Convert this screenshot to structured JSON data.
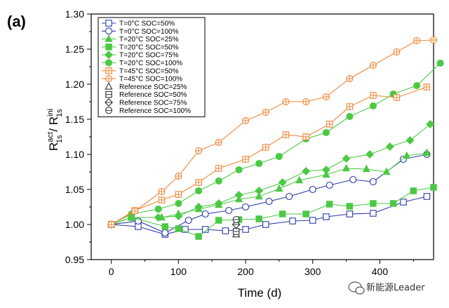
{
  "panel_label": "(a)",
  "watermark": {
    "text": "新能源Leader",
    "icon": "chat-bubble-icon"
  },
  "chart_data": {
    "type": "line",
    "xlabel": "Time (d)",
    "ylabel": {
      "main": "R",
      "sup1": "act",
      "sub1": "1s",
      "sep": " / R",
      "sup2": "ini",
      "sub2": "1s"
    },
    "xlim": [
      -30,
      480
    ],
    "ylim": [
      0.95,
      1.3
    ],
    "xticks": [
      0,
      100,
      200,
      300,
      400
    ],
    "yticks": [
      0.95,
      1.0,
      1.05,
      1.1,
      1.15,
      1.2,
      1.25,
      1.3
    ],
    "ytick_labels": [
      "0.95",
      "1.00",
      "1.05",
      "1.10",
      "1.15",
      "1.20",
      "1.25",
      "1.30"
    ],
    "grid": false,
    "legend_position": "top-left",
    "series": [
      {
        "name": "T=0°C SOC=50%",
        "color": "#2a3aa8",
        "marker": "square-open",
        "line": true,
        "x": [
          0,
          40,
          80,
          110,
          140,
          170,
          200,
          230,
          270,
          300,
          320,
          355,
          390,
          435,
          470
        ],
        "y": [
          1.0,
          0.997,
          0.986,
          0.993,
          0.993,
          0.991,
          0.993,
          1.0,
          1.005,
          1.006,
          1.011,
          1.015,
          1.016,
          1.032,
          1.04
        ]
      },
      {
        "name": "T=0°C SOC=100%",
        "color": "#2a3aa8",
        "marker": "circle-open",
        "line": true,
        "x": [
          0,
          40,
          80,
          115,
          140,
          175,
          200,
          235,
          265,
          300,
          325,
          360,
          390,
          435,
          470
        ],
        "y": [
          1.0,
          1.005,
          0.988,
          1.006,
          1.015,
          1.02,
          1.025,
          1.033,
          1.04,
          1.05,
          1.056,
          1.064,
          1.061,
          1.093,
          1.1
        ]
      },
      {
        "name": "T=20°C SOC=25%",
        "color": "#4cc944",
        "marker": "triangle-filled",
        "line": true,
        "x": [
          0,
          30,
          75,
          100,
          130,
          160,
          190,
          220,
          250,
          280,
          320,
          350,
          380,
          410,
          440,
          470
        ],
        "y": [
          1.0,
          1.01,
          1.01,
          1.015,
          1.022,
          1.028,
          1.036,
          1.04,
          1.051,
          1.063,
          1.071,
          1.08,
          1.079,
          1.075,
          1.098,
          1.102
        ]
      },
      {
        "name": "T=20°C SOC=50%",
        "color": "#4cc944",
        "marker": "square-filled",
        "line": true,
        "x": [
          0,
          30,
          80,
          100,
          130,
          160,
          190,
          220,
          255,
          290,
          325,
          355,
          390,
          420,
          450,
          480
        ],
        "y": [
          1.0,
          1.01,
          0.997,
          0.994,
          0.983,
          1.006,
          1.007,
          1.008,
          1.015,
          1.015,
          1.029,
          1.026,
          1.03,
          1.03,
          1.048,
          1.053
        ]
      },
      {
        "name": "T=20°C SOC=75%",
        "color": "#4cc944",
        "marker": "diamond-filled",
        "line": true,
        "x": [
          0,
          30,
          70,
          100,
          130,
          160,
          190,
          220,
          255,
          290,
          320,
          350,
          385,
          415,
          445,
          475
        ],
        "y": [
          1.0,
          1.01,
          1.01,
          1.012,
          1.025,
          1.03,
          1.042,
          1.048,
          1.06,
          1.076,
          1.078,
          1.094,
          1.1,
          1.111,
          1.12,
          1.143
        ]
      },
      {
        "name": "T=20°C SOC=100%",
        "color": "#4cc944",
        "marker": "circle-filled",
        "line": true,
        "x": [
          0,
          30,
          70,
          100,
          130,
          160,
          190,
          220,
          250,
          290,
          320,
          355,
          390,
          420,
          455,
          490
        ],
        "y": [
          1.0,
          1.015,
          1.022,
          1.03,
          1.048,
          1.062,
          1.078,
          1.087,
          1.097,
          1.122,
          1.131,
          1.154,
          1.169,
          1.186,
          1.198,
          1.23
        ]
      },
      {
        "name": "T=45°C SOC=50%",
        "color": "#f0873a",
        "marker": "square-cross",
        "line": true,
        "x": [
          0,
          35,
          75,
          100,
          130,
          160,
          200,
          230,
          260,
          290,
          325,
          355,
          390,
          425,
          470
        ],
        "y": [
          1.0,
          1.02,
          1.035,
          1.043,
          1.06,
          1.08,
          1.093,
          1.11,
          1.128,
          1.125,
          1.143,
          1.168,
          1.184,
          1.181,
          1.196
        ]
      },
      {
        "name": "T=45°C SOC=100%",
        "color": "#f0873a",
        "marker": "circle-cross",
        "line": true,
        "x": [
          0,
          35,
          75,
          100,
          130,
          160,
          200,
          230,
          260,
          290,
          320,
          355,
          390,
          425,
          455,
          480
        ],
        "y": [
          1.0,
          1.019,
          1.047,
          1.069,
          1.105,
          1.117,
          1.148,
          1.16,
          1.175,
          1.175,
          1.182,
          1.208,
          1.227,
          1.246,
          1.262,
          1.263
        ]
      },
      {
        "name": "Reference SOC=25%",
        "color": "#333333",
        "marker": "triangle-open",
        "line": false,
        "x": [
          186
        ],
        "y": [
          0.986
        ]
      },
      {
        "name": "Reference SOC=50%",
        "color": "#333333",
        "marker": "square-open",
        "line": false,
        "x": [
          186
        ],
        "y": [
          0.99
        ]
      },
      {
        "name": "Reference SOC=75%",
        "color": "#333333",
        "marker": "diamond-open",
        "line": false,
        "x": [
          186
        ],
        "y": [
          1.0
        ]
      },
      {
        "name": "Reference SOC=100%",
        "color": "#333333",
        "marker": "circle-open",
        "line": false,
        "x": [
          186
        ],
        "y": [
          1.007
        ]
      }
    ]
  }
}
